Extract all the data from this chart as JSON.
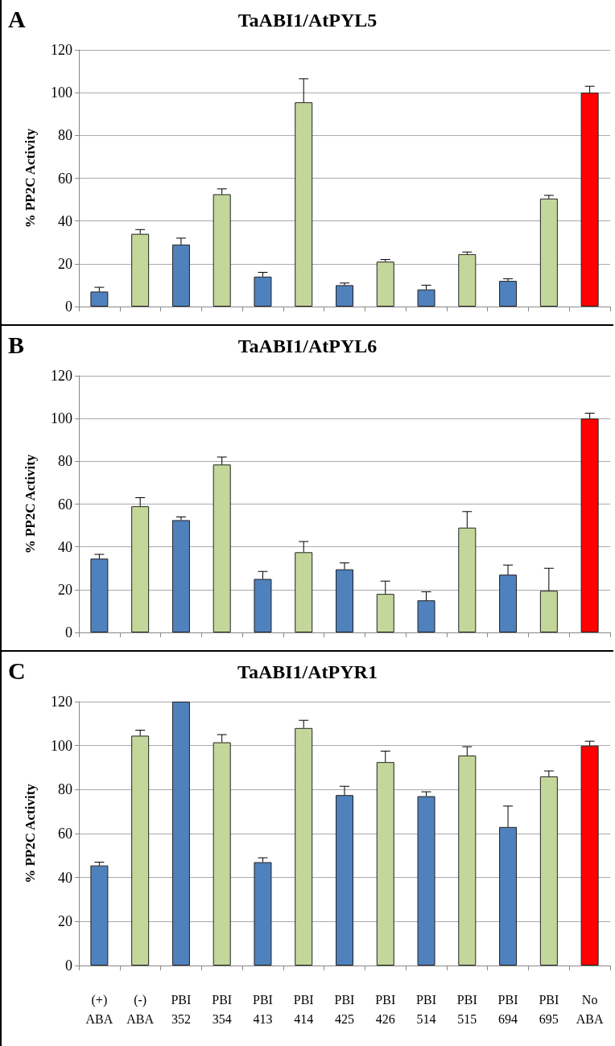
{
  "chart_data": [
    {
      "type": "bar",
      "title": "TaABI1/AtPYL5",
      "annotations": [
        "A"
      ],
      "ylabel": "% PP2C Activity",
      "categories": [
        null,
        null,
        null,
        null,
        null,
        null,
        null,
        null,
        null,
        null,
        null,
        null,
        null
      ],
      "values": [
        7,
        34,
        29,
        52.5,
        14,
        95.5,
        10,
        21,
        8,
        24.5,
        12,
        50.5,
        100
      ],
      "errors": [
        [
          7,
          9
        ],
        [
          34,
          36
        ],
        [
          29,
          32
        ],
        [
          52.5,
          55
        ],
        [
          14,
          16
        ],
        [
          95.5,
          106.5
        ],
        [
          10,
          11
        ],
        [
          21,
          22
        ],
        [
          8,
          10
        ],
        [
          24.5,
          25.5
        ],
        [
          12,
          13
        ],
        [
          50.5,
          52
        ],
        [
          100,
          103
        ]
      ],
      "colors": [
        "#4f81bd",
        "#c4d79b",
        "#4f81bd",
        "#c4d79b",
        "#4f81bd",
        "#c4d79b",
        "#4f81bd",
        "#c4d79b",
        "#4f81bd",
        "#c4d79b",
        "#4f81bd",
        "#c4d79b",
        "#ff0000"
      ],
      "ylim": [
        0,
        120
      ],
      "yticks": [
        0,
        20,
        40,
        60,
        80,
        100,
        120
      ],
      "grid": "y",
      "tick_labels": "y"
    },
    {
      "type": "bar",
      "title": "TaABI1/AtPYL6",
      "annotations": [
        "B"
      ],
      "ylabel": "% PP2C Activity",
      "categories": [
        null,
        null,
        null,
        null,
        null,
        null,
        null,
        null,
        null,
        null,
        null,
        null,
        null
      ],
      "values": [
        34.5,
        59,
        52.5,
        78.5,
        25,
        37.5,
        29.5,
        18,
        15,
        49,
        27,
        19.5,
        100
      ],
      "errors": [
        [
          34.5,
          36.5
        ],
        [
          59,
          63
        ],
        [
          52.5,
          54
        ],
        [
          78.5,
          82
        ],
        [
          25,
          28.5
        ],
        [
          37.5,
          42.5
        ],
        [
          29.5,
          32.5
        ],
        [
          18,
          24
        ],
        [
          15,
          19
        ],
        [
          49,
          56.5
        ],
        [
          27,
          31.5
        ],
        [
          19.5,
          30
        ],
        [
          100,
          102.5
        ]
      ],
      "colors": [
        "#4f81bd",
        "#c4d79b",
        "#4f81bd",
        "#c4d79b",
        "#4f81bd",
        "#c4d79b",
        "#4f81bd",
        "#c4d79b",
        "#4f81bd",
        "#c4d79b",
        "#4f81bd",
        "#c4d79b",
        "#ff0000"
      ],
      "ylim": [
        0,
        120
      ],
      "yticks": [
        0,
        20,
        40,
        60,
        80,
        100,
        120
      ],
      "grid": "y",
      "tick_labels": "y"
    },
    {
      "type": "bar",
      "title": "TaABI1/AtPYR1",
      "annotations": [
        "C"
      ],
      "ylabel": "% PP2C Activity",
      "categories": [
        "(+) ABA",
        "(-) ABA",
        "PBI 352",
        "PBI 354",
        "PBI 413",
        "PBI 414",
        "PBI 425",
        "PBI 426",
        "PBI 514",
        "PBI 515",
        "PBI 694",
        "PBI 695",
        "No ABA"
      ],
      "values": [
        45.5,
        104.5,
        120,
        101.5,
        47,
        108,
        77.5,
        92.5,
        77,
        95.5,
        63,
        86,
        100
      ],
      "errors": [
        [
          45.5,
          47
        ],
        [
          104.5,
          107
        ],
        null,
        [
          101.5,
          105
        ],
        [
          47,
          49
        ],
        [
          108,
          111.5
        ],
        [
          77.5,
          81.5
        ],
        [
          92.5,
          97.5
        ],
        [
          77,
          79
        ],
        [
          95.5,
          99.5
        ],
        [
          63,
          72.5
        ],
        [
          86,
          88.5
        ],
        [
          100,
          102
        ]
      ],
      "colors": [
        "#4f81bd",
        "#c4d79b",
        "#4f81bd",
        "#c4d79b",
        "#4f81bd",
        "#c4d79b",
        "#4f81bd",
        "#c4d79b",
        "#4f81bd",
        "#c4d79b",
        "#4f81bd",
        "#c4d79b",
        "#ff0000"
      ],
      "ylim": [
        0,
        120
      ],
      "yticks": [
        0,
        20,
        40,
        60,
        80,
        100,
        120
      ],
      "grid": "y"
    }
  ]
}
